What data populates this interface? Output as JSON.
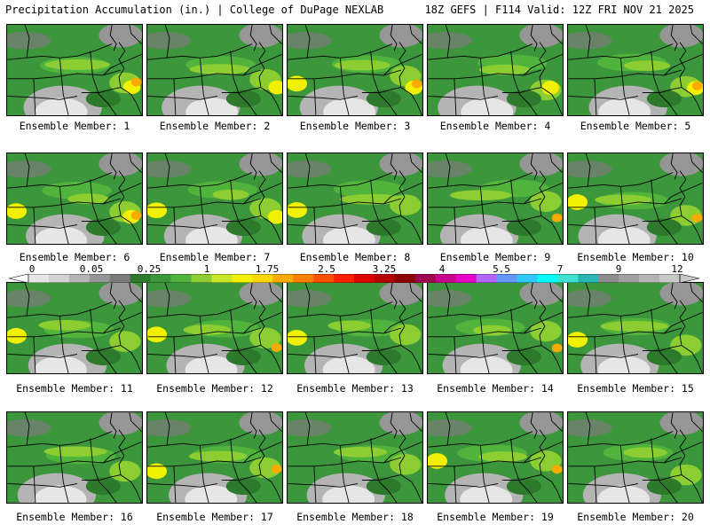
{
  "header": {
    "left": "Precipitation Accumulation (in.) | College of DuPage NEXLAB",
    "right": "18Z GEFS | F114 Valid: 12Z FRI NOV 21 2025"
  },
  "members": [
    {
      "label": "Ensemble Member: 1"
    },
    {
      "label": "Ensemble Member: 2"
    },
    {
      "label": "Ensemble Member: 3"
    },
    {
      "label": "Ensemble Member: 4"
    },
    {
      "label": "Ensemble Member: 5"
    },
    {
      "label": "Ensemble Member: 6"
    },
    {
      "label": "Ensemble Member: 7"
    },
    {
      "label": "Ensemble Member: 8"
    },
    {
      "label": "Ensemble Member: 9"
    },
    {
      "label": "Ensemble Member: 10"
    },
    {
      "label": "Ensemble Member: 11"
    },
    {
      "label": "Ensemble Member: 12"
    },
    {
      "label": "Ensemble Member: 13"
    },
    {
      "label": "Ensemble Member: 14"
    },
    {
      "label": "Ensemble Member: 15"
    },
    {
      "label": "Ensemble Member: 16"
    },
    {
      "label": "Ensemble Member: 17"
    },
    {
      "label": "Ensemble Member: 18"
    },
    {
      "label": "Ensemble Member: 19"
    },
    {
      "label": "Ensemble Member: 20"
    }
  ],
  "colorbar": {
    "tick_labels": [
      "0",
      "0.05",
      "0.25",
      "1",
      "1.75",
      "2.5",
      "3.25",
      "4",
      "5.5",
      "7",
      "9",
      "12"
    ],
    "colors": [
      "#e6e6e6",
      "#d2d2d2",
      "#b4b4b4",
      "#969696",
      "#7a7a7a",
      "#2d7a2d",
      "#3c963c",
      "#50b43c",
      "#8ccd32",
      "#c8e628",
      "#f0f000",
      "#ffd700",
      "#ffaa00",
      "#ff7f00",
      "#ff5000",
      "#ff1e00",
      "#dc0000",
      "#b40000",
      "#8c0000",
      "#a00050",
      "#c8008c",
      "#e600c8",
      "#b464ff",
      "#6496ff",
      "#32c8ff",
      "#00ffff",
      "#40e0d0",
      "#2ab4b4",
      "#8c8c8c",
      "#a0a0a0",
      "#b4b4b4",
      "#c8c8c8"
    ]
  }
}
